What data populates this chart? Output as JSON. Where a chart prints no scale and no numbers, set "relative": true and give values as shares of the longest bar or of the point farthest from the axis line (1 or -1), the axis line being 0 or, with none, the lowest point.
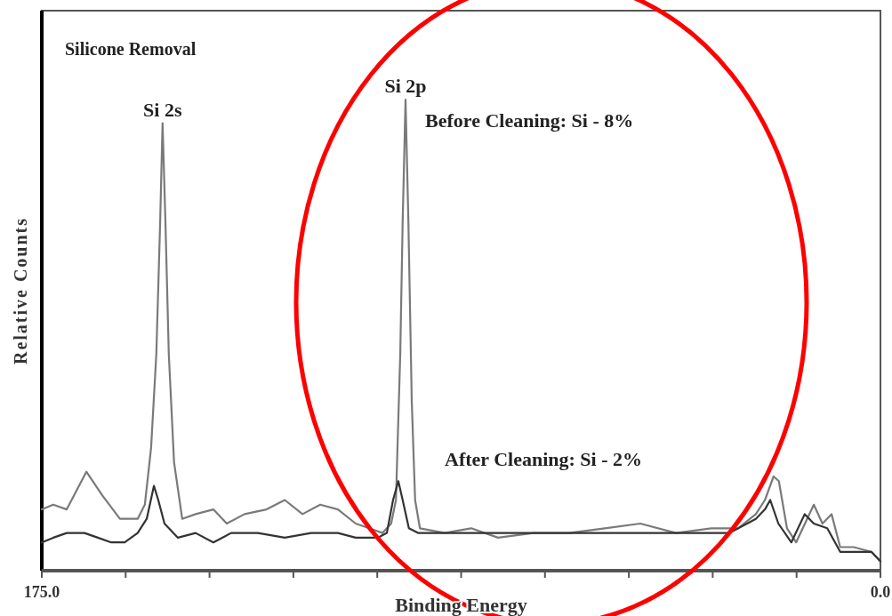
{
  "chart_data": {
    "type": "line",
    "title": "Silicone Removal",
    "xlabel": "Binding Energy",
    "ylabel": "Relative Counts",
    "relative": true,
    "xlim": [
      175,
      0
    ],
    "xticks": [
      {
        "value": 175,
        "label": "175.0"
      },
      {
        "value": 157.5,
        "label": null
      },
      {
        "value": 140,
        "label": null
      },
      {
        "value": 122.5,
        "label": null
      },
      {
        "value": 105,
        "label": null
      },
      {
        "value": 87.5,
        "label": null
      },
      {
        "value": 70,
        "label": null
      },
      {
        "value": 52.5,
        "label": null
      },
      {
        "value": 35,
        "label": null
      },
      {
        "value": 17.5,
        "label": null
      },
      {
        "value": 0,
        "label": "0.0"
      }
    ],
    "line_style": "solid",
    "annotations": [
      {
        "text": "Si 2s",
        "x": 149.8,
        "y": 0.95
      },
      {
        "text": "Si 2p",
        "x": 99.1,
        "y": 1.0
      },
      "Before Cleaning: Si - 8%",
      "After Cleaning: Si - 2%"
    ],
    "series": [
      {
        "color": "#7a7a7a",
        "x": [
          175.0,
          172.6,
          169.8,
          165.7,
          162.4,
          158.7,
          155.0,
          153.5,
          152.2,
          151.1,
          150.3,
          149.8,
          149.2,
          148.5,
          147.4,
          145.7,
          142.9,
          139.2,
          136.4,
          132.7,
          128.1,
          124.3,
          120.6,
          116.9,
          113.2,
          109.5,
          106.7,
          103.9,
          102.1,
          101.1,
          100.2,
          99.7,
          99.1,
          98.5,
          97.8,
          97.1,
          96.1,
          90.9,
          85.4,
          79.8,
          72.4,
          65.0,
          57.5,
          50.1,
          42.7,
          35.3,
          29.7,
          26.0,
          24.1,
          22.3,
          21.2,
          19.5,
          17.6,
          13.9,
          12.1,
          10.2,
          8.4,
          5.6,
          1.9,
          0.0
        ],
        "values": [
          0.13,
          0.14,
          0.13,
          0.21,
          0.16,
          0.11,
          0.11,
          0.14,
          0.26,
          0.46,
          0.74,
          0.95,
          0.74,
          0.46,
          0.23,
          0.11,
          0.12,
          0.13,
          0.1,
          0.12,
          0.13,
          0.15,
          0.12,
          0.14,
          0.13,
          0.1,
          0.09,
          0.08,
          0.1,
          0.15,
          0.46,
          0.74,
          1.0,
          0.74,
          0.36,
          0.15,
          0.09,
          0.08,
          0.09,
          0.07,
          0.08,
          0.08,
          0.09,
          0.1,
          0.08,
          0.09,
          0.09,
          0.12,
          0.15,
          0.2,
          0.19,
          0.09,
          0.06,
          0.14,
          0.1,
          0.12,
          0.05,
          0.05,
          0.04,
          0.02
        ]
      },
      {
        "color": "#333333",
        "x": [
          175.0,
          172.6,
          169.8,
          166.1,
          163.3,
          160.5,
          157.7,
          155.0,
          153.1,
          151.6,
          150.7,
          149.4,
          146.6,
          142.9,
          139.2,
          135.5,
          129.9,
          124.3,
          118.8,
          113.2,
          109.5,
          104.9,
          103.0,
          101.7,
          100.6,
          99.7,
          98.4,
          96.5,
          90.9,
          83.5,
          76.1,
          68.7,
          61.2,
          53.8,
          46.4,
          39.0,
          31.5,
          26.0,
          24.1,
          23.0,
          21.3,
          18.6,
          15.8,
          13.9,
          11.1,
          8.4,
          5.6,
          1.9,
          0.0
        ],
        "values": [
          0.06,
          0.07,
          0.08,
          0.08,
          0.07,
          0.06,
          0.06,
          0.08,
          0.11,
          0.18,
          0.15,
          0.1,
          0.07,
          0.08,
          0.06,
          0.08,
          0.08,
          0.07,
          0.08,
          0.08,
          0.07,
          0.07,
          0.08,
          0.15,
          0.19,
          0.15,
          0.09,
          0.08,
          0.08,
          0.08,
          0.08,
          0.08,
          0.08,
          0.08,
          0.08,
          0.08,
          0.08,
          0.11,
          0.13,
          0.15,
          0.1,
          0.06,
          0.12,
          0.1,
          0.09,
          0.04,
          0.04,
          0.04,
          0.02
        ]
      }
    ]
  }
}
